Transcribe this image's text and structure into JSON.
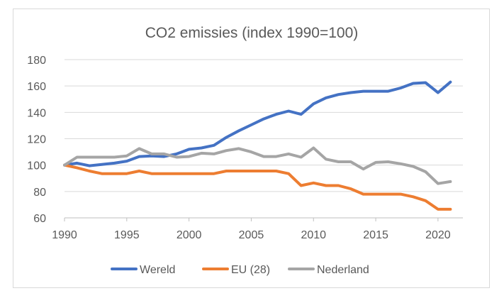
{
  "chart_data": {
    "type": "line",
    "title": "CO2 emissies (index 1990=100)",
    "xlabel": "",
    "ylabel": "",
    "xlim": [
      1990,
      2022
    ],
    "ylim": [
      60,
      180
    ],
    "xticks": [
      "1990",
      "1995",
      "2000",
      "2005",
      "2010",
      "2015",
      "2020"
    ],
    "yticks": [
      "60",
      "80",
      "100",
      "120",
      "140",
      "160",
      "180"
    ],
    "grid": "horizontal",
    "legend_position": "bottom",
    "x": [
      1990,
      1991,
      1992,
      1993,
      1994,
      1995,
      1996,
      1997,
      1998,
      1999,
      2000,
      2001,
      2002,
      2003,
      2004,
      2005,
      2006,
      2007,
      2008,
      2009,
      2010,
      2011,
      2012,
      2013,
      2014,
      2015,
      2016,
      2017,
      2018,
      2019,
      2020,
      2021
    ],
    "series": [
      {
        "name": "Wereld",
        "color": "#4472c4",
        "values": [
          100,
          101.5,
          99.5,
          100.5,
          101.5,
          103,
          106.5,
          107,
          106.5,
          108.5,
          112,
          113,
          115,
          121,
          126,
          130.5,
          135,
          138.5,
          141,
          138.5,
          146.5,
          151,
          153.5,
          155,
          156,
          156,
          156,
          158.5,
          162,
          162.5,
          155,
          163
        ]
      },
      {
        "name": "EU (28)",
        "color": "#ed7d31",
        "values": [
          100,
          98,
          95.5,
          93.5,
          93.5,
          93.5,
          95.5,
          93.5,
          93.5,
          93.5,
          93.5,
          93.5,
          93.5,
          95.5,
          95.5,
          95.5,
          95.5,
          95.5,
          93.5,
          84.5,
          86.5,
          84.5,
          84.5,
          82,
          78,
          78,
          78,
          78,
          76,
          73,
          66.5,
          66.5
        ]
      },
      {
        "name": "Nederland",
        "color": "#a5a5a5",
        "values": [
          100,
          106,
          106,
          106,
          106,
          107,
          112.5,
          108.5,
          108.5,
          106,
          106.5,
          109,
          108.5,
          111,
          112.5,
          110,
          106.5,
          106.5,
          108.5,
          106,
          113,
          104.5,
          102.5,
          102.5,
          97,
          102,
          102.5,
          101,
          99,
          95,
          86,
          87.5
        ]
      }
    ]
  }
}
